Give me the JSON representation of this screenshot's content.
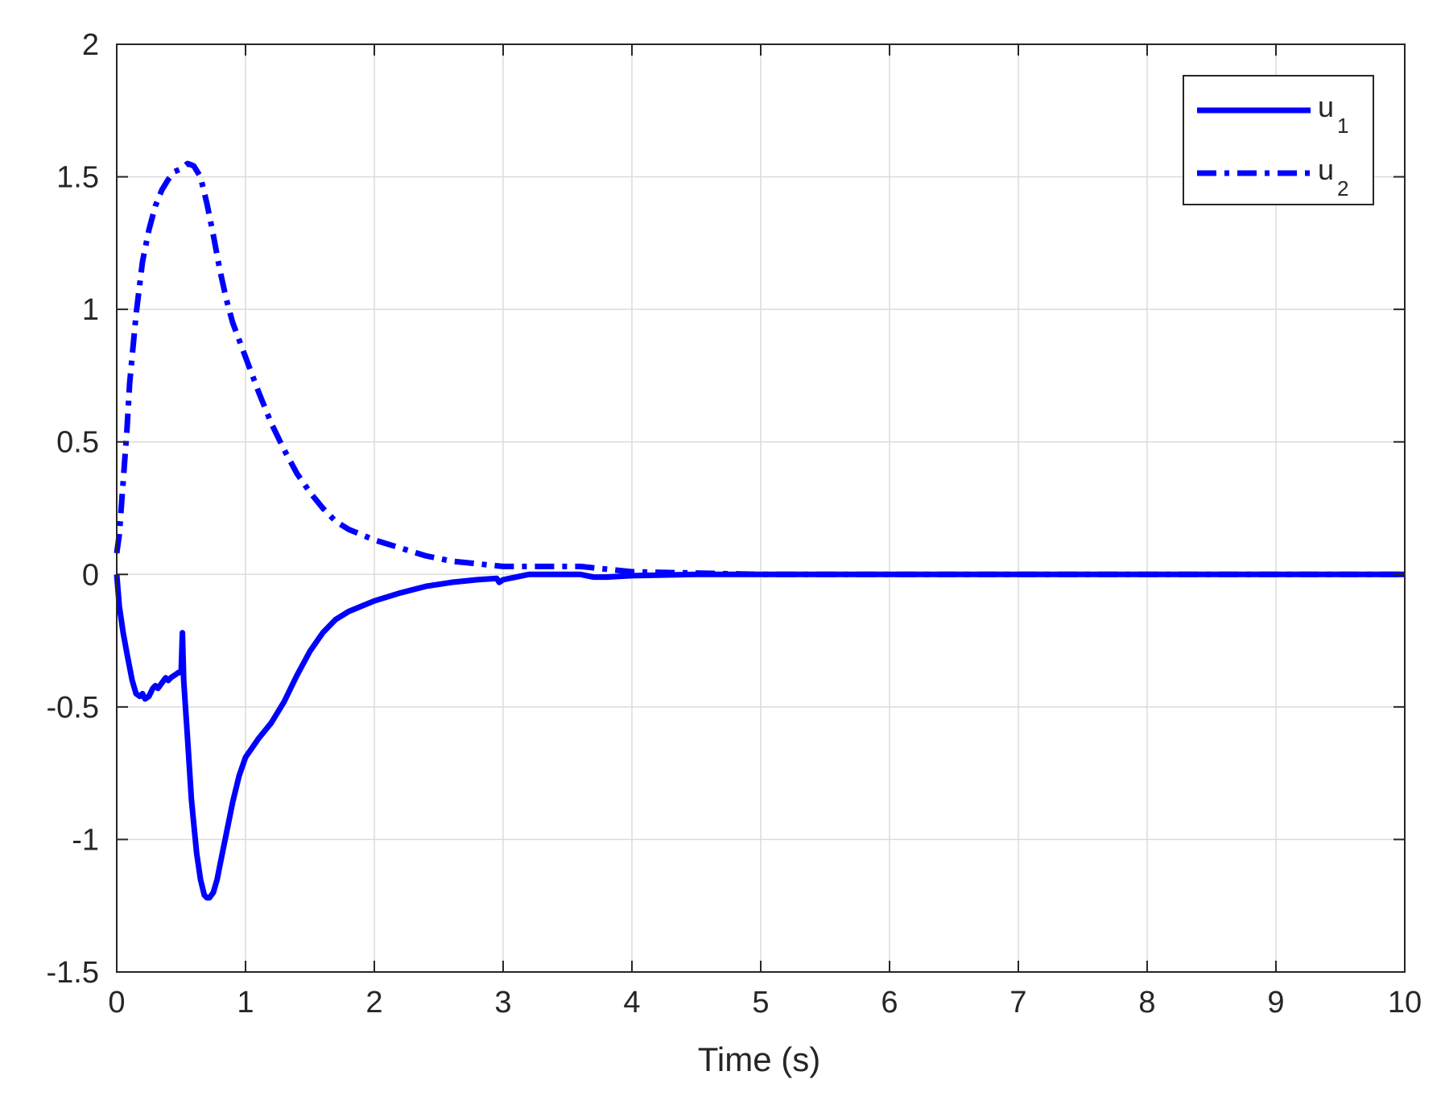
{
  "chart_data": {
    "type": "line",
    "title": "",
    "xlabel": "Time (s)",
    "ylabel": "",
    "xlim": [
      0,
      10
    ],
    "ylim": [
      -1.5,
      2
    ],
    "xticks": [
      0,
      1,
      2,
      3,
      4,
      5,
      6,
      7,
      8,
      9,
      10
    ],
    "xtick_labels": [
      "0",
      "1",
      "2",
      "3",
      "4",
      "5",
      "6",
      "7",
      "8",
      "9",
      "10"
    ],
    "yticks": [
      -1.5,
      -1,
      -0.5,
      0,
      0.5,
      1,
      1.5,
      2
    ],
    "ytick_labels": [
      "-1.5",
      "-1",
      "-0.5",
      "0",
      "0.5",
      "1",
      "1.5",
      "2"
    ],
    "grid": true,
    "legend_position": "top-right",
    "series": [
      {
        "name": "u1",
        "legend_base": "u",
        "legend_sub": "1",
        "line_style": "solid",
        "color": "#0000ff",
        "x": [
          0,
          0.02,
          0.05,
          0.08,
          0.1,
          0.12,
          0.15,
          0.18,
          0.2,
          0.22,
          0.25,
          0.28,
          0.3,
          0.32,
          0.35,
          0.38,
          0.4,
          0.42,
          0.45,
          0.48,
          0.5,
          0.51,
          0.52,
          0.55,
          0.58,
          0.6,
          0.62,
          0.65,
          0.68,
          0.7,
          0.72,
          0.75,
          0.78,
          0.8,
          0.85,
          0.9,
          0.95,
          1.0,
          1.1,
          1.2,
          1.3,
          1.4,
          1.5,
          1.6,
          1.7,
          1.8,
          1.9,
          2.0,
          2.2,
          2.4,
          2.6,
          2.8,
          2.95,
          2.97,
          3.0,
          3.1,
          3.2,
          3.4,
          3.6,
          3.7,
          3.8,
          4.0,
          4.5,
          5,
          6,
          7,
          8,
          9,
          10
        ],
        "y": [
          0,
          -0.12,
          -0.22,
          -0.3,
          -0.35,
          -0.4,
          -0.45,
          -0.46,
          -0.45,
          -0.47,
          -0.46,
          -0.43,
          -0.42,
          -0.43,
          -0.41,
          -0.39,
          -0.4,
          -0.39,
          -0.38,
          -0.37,
          -0.37,
          -0.22,
          -0.4,
          -0.62,
          -0.85,
          -0.95,
          -1.05,
          -1.15,
          -1.21,
          -1.22,
          -1.22,
          -1.2,
          -1.15,
          -1.1,
          -0.98,
          -0.86,
          -0.76,
          -0.69,
          -0.62,
          -0.56,
          -0.48,
          -0.38,
          -0.29,
          -0.22,
          -0.17,
          -0.14,
          -0.12,
          -0.1,
          -0.07,
          -0.045,
          -0.03,
          -0.02,
          -0.015,
          -0.03,
          -0.02,
          -0.01,
          0,
          0,
          0,
          -0.01,
          -0.01,
          -0.005,
          0,
          0,
          0,
          0,
          0,
          0,
          0
        ]
      },
      {
        "name": "u2",
        "legend_base": "u",
        "legend_sub": "2",
        "line_style": "dashdot",
        "color": "#0000ff",
        "x": [
          0,
          0.02,
          0.05,
          0.08,
          0.1,
          0.15,
          0.2,
          0.25,
          0.3,
          0.35,
          0.4,
          0.45,
          0.5,
          0.55,
          0.58,
          0.6,
          0.65,
          0.7,
          0.75,
          0.8,
          0.85,
          0.9,
          1.0,
          1.1,
          1.2,
          1.3,
          1.4,
          1.5,
          1.6,
          1.7,
          1.8,
          2.0,
          2.2,
          2.4,
          2.6,
          2.8,
          3.0,
          3.2,
          3.4,
          3.6,
          3.8,
          4.0,
          4.5,
          5,
          6,
          7,
          8,
          9,
          10
        ],
        "y": [
          0.08,
          0.15,
          0.35,
          0.55,
          0.72,
          0.98,
          1.18,
          1.3,
          1.39,
          1.45,
          1.49,
          1.52,
          1.53,
          1.55,
          1.545,
          1.54,
          1.5,
          1.4,
          1.28,
          1.15,
          1.04,
          0.95,
          0.82,
          0.69,
          0.57,
          0.47,
          0.38,
          0.31,
          0.25,
          0.2,
          0.17,
          0.13,
          0.1,
          0.07,
          0.05,
          0.04,
          0.03,
          0.03,
          0.03,
          0.03,
          0.02,
          0.01,
          0.005,
          0,
          0,
          0,
          0,
          0,
          0
        ]
      }
    ]
  }
}
